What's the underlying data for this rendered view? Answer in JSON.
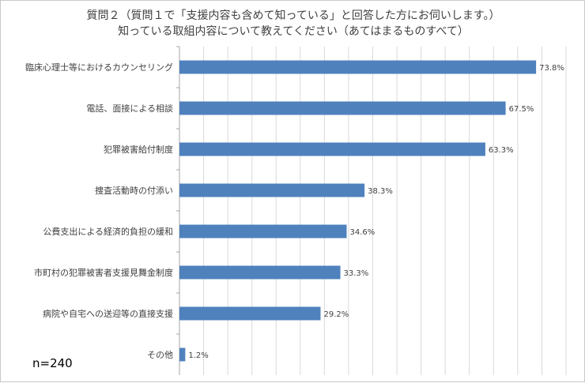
{
  "title_lines": [
    "質問２（質問１で「支援内容も含めて知っている」と回答した方にお伺いします。）",
    "知っている取組内容について教えてください（あてはまるものすべて）"
  ],
  "sample_size": "n=240",
  "colors": {
    "bar": "#4f81bd",
    "grid": "#d9d9d9",
    "axis": "#a6a6a6",
    "text": "#404040"
  },
  "chart_data": {
    "type": "bar",
    "orientation": "horizontal",
    "categories": [
      "臨床心理士等におけるカウンセリング",
      "電話、面接による相談",
      "犯罪被害給付制度",
      "捜査活動時の付添い",
      "公費支出による経済的負担の緩和",
      "市町村の犯罪被害者支援見舞金制度",
      "病院や自宅への送迎等の直接支援",
      "その他"
    ],
    "values": [
      73.8,
      67.5,
      63.3,
      38.3,
      34.6,
      33.3,
      29.2,
      1.2
    ],
    "value_labels": [
      "73.8%",
      "67.5%",
      "63.3%",
      "38.3%",
      "34.6%",
      "33.3%",
      "29.2%",
      "1.2%"
    ],
    "xlim": [
      0,
      80
    ],
    "grid": true,
    "legend": "none"
  }
}
